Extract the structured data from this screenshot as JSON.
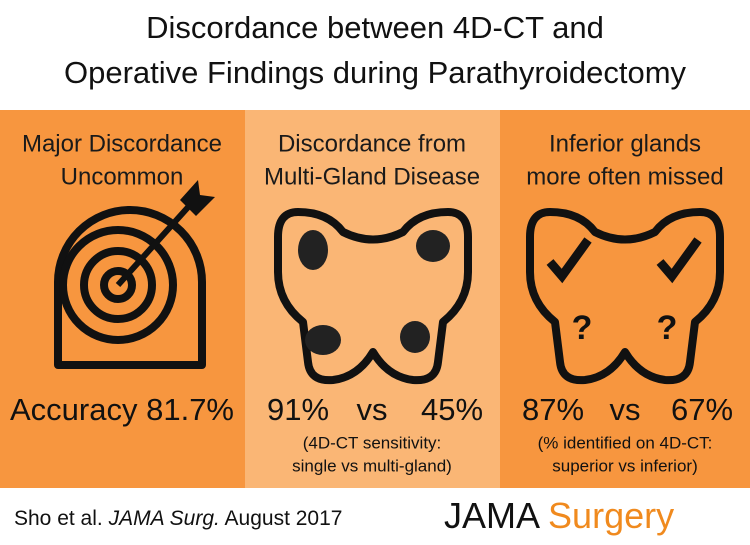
{
  "header": {
    "title_lines": [
      "Discordance between 4D-CT and",
      "Operative Findings during Parathyroidectomy"
    ]
  },
  "panels": [
    {
      "title_lines": [
        "Major Discordance",
        "Uncommon"
      ],
      "stat": "Accuracy 81.7%"
    },
    {
      "title_lines": [
        "Discordance from",
        "Multi-Gland Disease"
      ],
      "stat": {
        "left": "91%",
        "vs": "vs",
        "right": "45%"
      },
      "note_lines": [
        "(4D-CT sensitivity:",
        "single vs multi-gland)"
      ]
    },
    {
      "title_lines": [
        "Inferior glands",
        "more often missed"
      ],
      "stat": {
        "left": "87%",
        "vs": "vs",
        "right": "67%"
      },
      "note_lines": [
        "(% identified on 4D-CT:",
        "superior vs inferior)"
      ],
      "icon_labels": [
        "?",
        "?"
      ]
    }
  ],
  "footer": {
    "authors": "Sho et al.",
    "journal": "JAMA Surg.",
    "date": "August 2017",
    "logo_jama": "JAMA",
    "logo_surgery": "Surgery"
  }
}
